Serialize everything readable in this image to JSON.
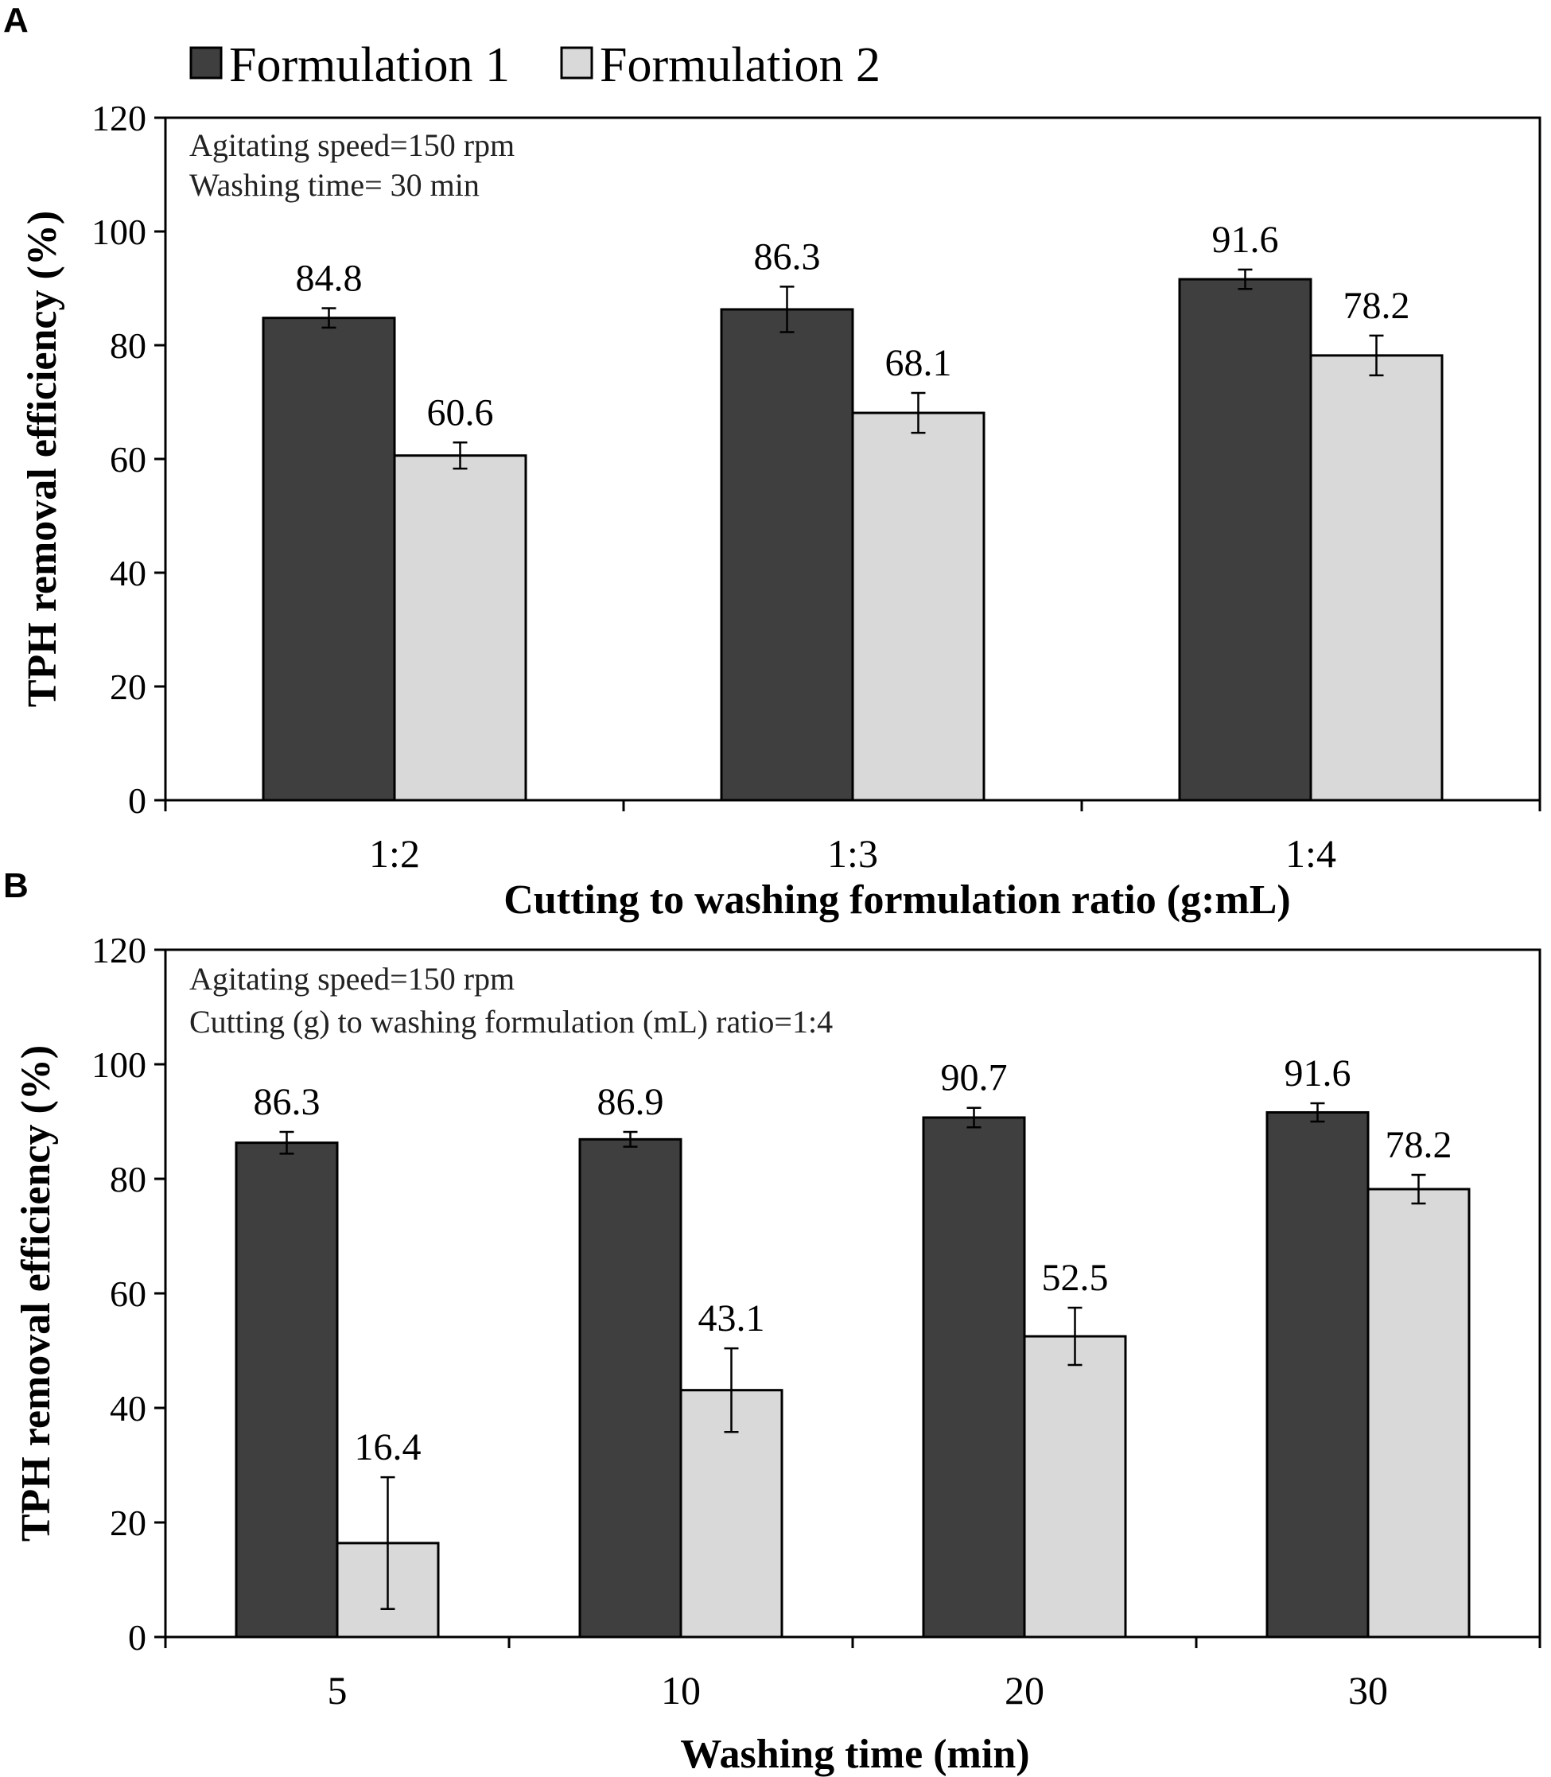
{
  "colors": {
    "formulation1": "#3f3f3f",
    "formulation2": "#d9d9d9",
    "axis": "#000000",
    "bar_stroke": "#000000"
  },
  "legend": [
    {
      "name": "Formulation 1",
      "color": "#3f3f3f"
    },
    {
      "name": "Formulation 2",
      "color": "#d9d9d9"
    }
  ],
  "chart_data": [
    {
      "panel": "A",
      "type": "bar",
      "ylabel": "TPH removal efficiency (%)",
      "xlabel": "Cutting to washing formulation ratio  (g:mL)",
      "annotations": [
        "Agitating speed=150 rpm",
        "Washing time= 30 min"
      ],
      "categories": [
        "1:2",
        "1:3",
        "1:4"
      ],
      "ylim": [
        0,
        120
      ],
      "yticks": [
        0,
        20,
        40,
        60,
        80,
        100,
        120
      ],
      "yticklabels": [
        "0",
        "20",
        "40",
        "60",
        "80",
        "100",
        "120"
      ],
      "series": [
        {
          "name": "Formulation 1",
          "values": [
            84.8,
            86.3,
            91.6
          ],
          "errors": [
            1.7,
            4.0,
            1.7
          ],
          "labels": [
            "84.8",
            "86.3",
            "91.6"
          ]
        },
        {
          "name": "Formulation 2",
          "values": [
            60.6,
            68.1,
            78.2
          ],
          "errors": [
            2.3,
            3.5,
            3.5
          ],
          "labels": [
            "60.6",
            "68.1",
            "78.2"
          ]
        }
      ]
    },
    {
      "panel": "B",
      "type": "bar",
      "ylabel": "TPH removal efficiency (%)",
      "xlabel": "Washing time (min)",
      "annotations": [
        "Agitating speed=150 rpm",
        "Cutting (g) to washing formulation (mL) ratio=1:4"
      ],
      "categories": [
        "5",
        "10",
        "20",
        "30"
      ],
      "ylim": [
        0,
        120
      ],
      "yticks": [
        0,
        20,
        40,
        60,
        80,
        100,
        120
      ],
      "yticklabels": [
        "0",
        "20",
        "40",
        "60",
        "80",
        "100",
        "120"
      ],
      "series": [
        {
          "name": "Formulation 1",
          "values": [
            86.3,
            86.9,
            90.7,
            91.6
          ],
          "errors": [
            1.9,
            1.3,
            1.7,
            1.6
          ],
          "labels": [
            "86.3",
            "86.9",
            "90.7",
            "91.6"
          ]
        },
        {
          "name": "Formulation 2",
          "values": [
            16.4,
            43.1,
            52.5,
            78.2
          ],
          "errors": [
            11.5,
            7.3,
            5.0,
            2.5
          ],
          "labels": [
            "16.4",
            "43.1",
            "52.5",
            "78.2"
          ]
        }
      ]
    }
  ]
}
